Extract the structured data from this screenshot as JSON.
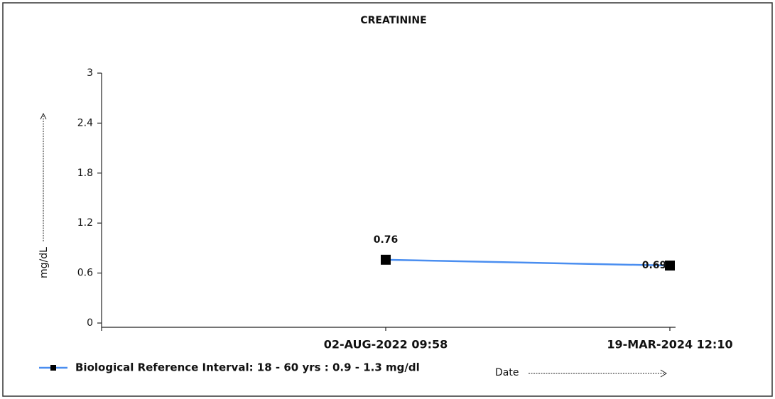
{
  "chart_data": {
    "type": "line",
    "title": "CREATININE",
    "ylabel": "mg/dL",
    "xlabel": "Date",
    "categories": [
      null,
      "02-AUG-2022 09:58",
      "19-MAR-2024 12:10"
    ],
    "series": [
      {
        "name": "Biological Reference Interval: 18 - 60 yrs : 0.9 - 1.3 mg/dl",
        "color": "#4a8ef0",
        "values": [
          null,
          0.76,
          0.69
        ]
      }
    ],
    "ylim": [
      0,
      3
    ],
    "yticks": [
      0,
      0.6,
      1.2,
      1.8,
      2.4,
      3
    ],
    "grid": false,
    "legend": "bottom-left"
  }
}
